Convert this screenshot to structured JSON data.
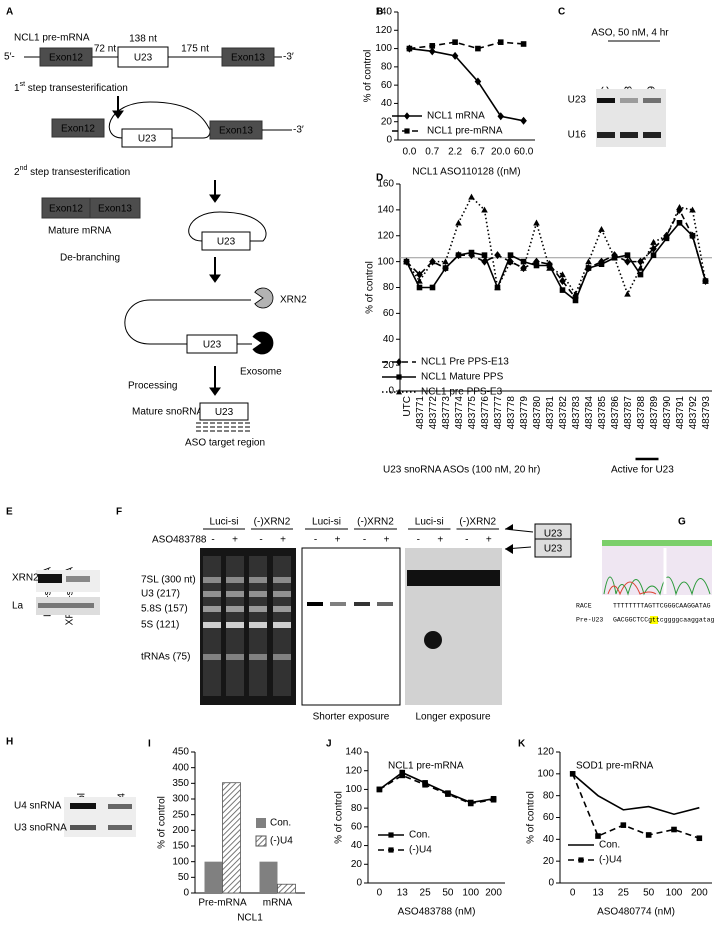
{
  "panel_a": {
    "label": "A",
    "title": "NCL1 pre-mRNA",
    "five": "5′-",
    "three": "-3′",
    "exon12": "Exon12",
    "exon13": "Exon13",
    "u23": "U23",
    "len1": "72 nt",
    "len2": "138 nt",
    "len3": "175 nt",
    "step1_num": "1",
    "step1_sup": "st",
    "step1_text": " step transesterification",
    "step2_num": "2",
    "step2_sup": "nd",
    "step2_text": " step transesterification",
    "mature_mrna": "Mature mRNA",
    "debranching": "De-branching",
    "xrn2": "XRN2",
    "exosome": "Exosome",
    "processing": "Processing",
    "mature_snorna": "Mature snoRNA",
    "target": "ASO target region"
  },
  "panel_c": {
    "label": "C",
    "title": "ASO, 50 nM, 4 hr",
    "lanes": [
      "UTC",
      "483788",
      "483789"
    ],
    "rows": [
      "U23",
      "U16"
    ]
  },
  "panel_e": {
    "label": "E",
    "lanes": [
      "Luci-siRNA",
      "XRN2-siRNA"
    ],
    "rows": [
      "XRN2",
      "La"
    ]
  },
  "panel_f": {
    "label": "F",
    "groups": [
      "Luci-si",
      "(-)XRN2"
    ],
    "treatment": "ASO483788",
    "signs": [
      "-",
      "+"
    ],
    "markers": [
      "7SL (300 nt)",
      "U3 (217)",
      "5.8S (157)",
      "5S (121)",
      "tRNAs (75)"
    ],
    "exposures": [
      "Shorter exposure",
      "Longer exposure"
    ],
    "product": "U23"
  },
  "panel_g": {
    "label": "G",
    "rows": [
      {
        "name": "RACE",
        "sequence": "TTTTTTTTAGTTCGGGCAAGGATAG"
      },
      {
        "name": "Pre-U23",
        "sequence": "GACGGCTCCgttcggggcaaggatag"
      }
    ]
  },
  "panel_h": {
    "label": "H",
    "lanes": [
      "Control",
      "(-)U4"
    ],
    "rows": [
      "U4 snRNA",
      "U3 snoRNA"
    ]
  },
  "chart_data": [
    {
      "type": "line",
      "panel_label": "B",
      "y_label": "% of control",
      "x_label": "NCL1 ASO110128 ((nM)",
      "categories": [
        "0.0",
        "0.7",
        "2.2",
        "6.7",
        "20.0",
        "60.0"
      ],
      "ylim": [
        0,
        140
      ],
      "yticks": [
        0,
        20,
        40,
        60,
        80,
        100,
        120,
        140
      ],
      "series": [
        {
          "name": "NCL1 mRNA",
          "color": "#000000",
          "dash": "solid",
          "marker": "diamond",
          "values": [
            100,
            97,
            92,
            64,
            26,
            21
          ]
        },
        {
          "name": "NCL1 pre-mRNA",
          "color": "#000000",
          "dash": "dashed",
          "marker": "square",
          "values": [
            100,
            103,
            107,
            100,
            107,
            105
          ]
        }
      ]
    },
    {
      "type": "line",
      "panel_label": "D",
      "y_label": "% of control",
      "x_label": "U23 snoRNA ASOs (100  nM, 20 hr)",
      "annotation": "Active   for U23",
      "categories": [
        "UTC",
        "483771",
        "483772",
        "483773",
        "483774",
        "483775",
        "483776",
        "483777",
        "483778",
        "483779",
        "483780",
        "483781",
        "483782",
        "483783",
        "483784",
        "483785",
        "483786",
        "483787",
        "483788",
        "483789",
        "483790",
        "483791",
        "483792",
        "483793"
      ],
      "ylim": [
        0,
        160
      ],
      "yticks": [
        0,
        20,
        40,
        60,
        80,
        100,
        120,
        140,
        160
      ],
      "reference_line": 103,
      "series": [
        {
          "name": "NCL1 Pre PPS-E13",
          "color": "#000000",
          "dash": "dashed",
          "marker": "diamond",
          "values": [
            100,
            90,
            100,
            95,
            105,
            105,
            100,
            105,
            100,
            95,
            100,
            98,
            85,
            72,
            95,
            100,
            105,
            100,
            100,
            110,
            120,
            140,
            120,
            85
          ]
        },
        {
          "name": "NCL1 Mature PPS",
          "color": "#000000",
          "dash": "solid",
          "marker": "square",
          "values": [
            100,
            80,
            80,
            95,
            105,
            107,
            105,
            80,
            105,
            100,
            97,
            97,
            78,
            70,
            95,
            98,
            103,
            105,
            90,
            105,
            118,
            130,
            120,
            85
          ]
        },
        {
          "name": "NCL1 pre PPS-E3",
          "color": "#000000",
          "dash": "dotted",
          "marker": "triangle",
          "values": [
            100,
            85,
            100,
            100,
            130,
            150,
            140,
            80,
            100,
            95,
            130,
            95,
            90,
            75,
            100,
            125,
            103,
            75,
            95,
            115,
            120,
            142,
            140,
            85
          ]
        }
      ]
    },
    {
      "type": "bar",
      "panel_label": "I",
      "y_label": "% of control",
      "x_label": "NCL1",
      "categories": [
        "Pre-mRNA",
        "mRNA"
      ],
      "ylim": [
        0,
        450
      ],
      "yticks": [
        0,
        50,
        100,
        150,
        200,
        250,
        300,
        350,
        400,
        450
      ],
      "series": [
        {
          "name": "Con.",
          "color": "#808080",
          "pattern": "solid",
          "values": [
            100,
            100
          ]
        },
        {
          "name": "(-)U4",
          "color": "#555555",
          "pattern": "hatch",
          "values": [
            352,
            28
          ]
        }
      ]
    },
    {
      "type": "line",
      "panel_label": "J",
      "title": "NCL1 pre-mRNA",
      "y_label": "% of control",
      "x_label": "ASO483788 (nM)",
      "categories": [
        "0",
        "13",
        "25",
        "50",
        "100",
        "200"
      ],
      "ylim": [
        0,
        140
      ],
      "yticks": [
        0,
        20,
        40,
        60,
        80,
        100,
        120,
        140
      ],
      "series": [
        {
          "name": "Con.",
          "color": "#000000",
          "dash": "solid",
          "marker": "square",
          "values": [
            100,
            118,
            107,
            96,
            86,
            90
          ]
        },
        {
          "name": "(-)U4",
          "color": "#000000",
          "dash": "dashed",
          "marker": "square",
          "values": [
            100,
            115,
            105,
            95,
            85,
            89
          ]
        }
      ]
    },
    {
      "type": "line",
      "panel_label": "K",
      "title": "SOD1 pre-mRNA",
      "y_label": "% of control",
      "x_label": "ASO480774 (nM)",
      "categories": [
        "0",
        "13",
        "25",
        "50",
        "100",
        "200"
      ],
      "ylim": [
        0,
        120
      ],
      "yticks": [
        0,
        20,
        40,
        60,
        80,
        100,
        120
      ],
      "series": [
        {
          "name": "Con.",
          "color": "#000000",
          "dash": "solid",
          "marker": "none",
          "values": [
            100,
            80,
            67,
            70,
            63,
            69
          ]
        },
        {
          "name": "(-)U4",
          "color": "#000000",
          "dash": "dashed",
          "marker": "square",
          "values": [
            100,
            43,
            53,
            44,
            49,
            41
          ]
        }
      ]
    }
  ]
}
